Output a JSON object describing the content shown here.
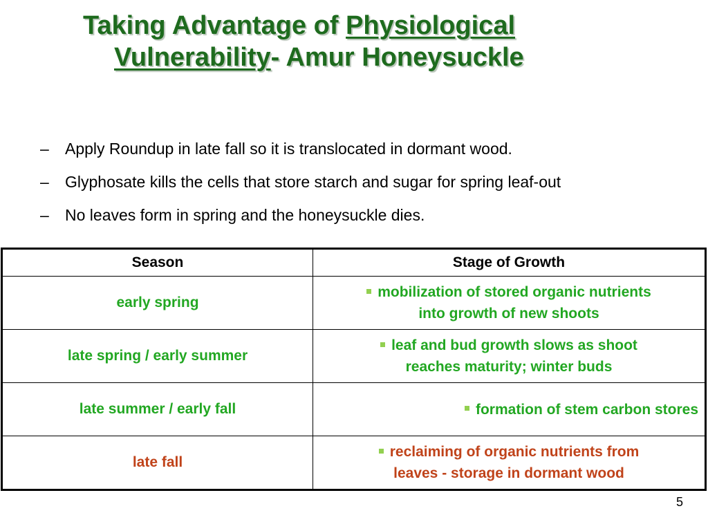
{
  "title": {
    "prefix": "Taking Advantage of ",
    "underlined_1": "Physiological",
    "underlined_2": "Vulnerability",
    "suffix": "-  Amur Honeysuckle"
  },
  "bullets": [
    "Apply Roundup in late fall so it is translocated in dormant wood.",
    "Glyphosate kills the cells that store starch and sugar for spring leaf-out",
    "No leaves form in spring and the honeysuckle dies."
  ],
  "bullet_marker": "–",
  "table": {
    "headers": [
      "Season",
      "Stage of Growth"
    ],
    "rows": [
      {
        "season": "early spring",
        "stage_line1": "mobilization of stored organic nutrients",
        "stage_line2": "into growth of new shoots",
        "color": "#22a722"
      },
      {
        "season": "late spring / early summer",
        "stage_line1": "leaf and bud growth slows as shoot",
        "stage_line2": "reaches maturity; winter buds",
        "color": "#22a722"
      },
      {
        "season": "late summer / early fall",
        "stage_line1": "formation of stem carbon stores",
        "stage_line2": "",
        "color": "#22a722"
      },
      {
        "season": "late fall",
        "stage_line1": "reclaiming of organic nutrients from",
        "stage_line2": "leaves - storage in dormant wood",
        "color": "#c0431a"
      }
    ],
    "bullet_color": "#92d050"
  },
  "page_number": "5",
  "colors": {
    "title": "#1e6b1e",
    "green_text": "#22a722",
    "red_text": "#c0431a"
  }
}
